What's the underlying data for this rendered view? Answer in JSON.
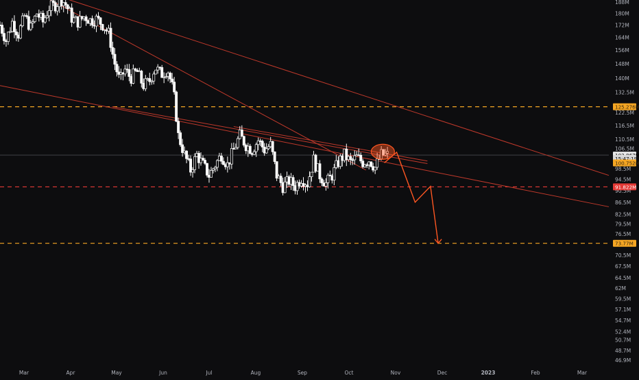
{
  "chart_data": {
    "type": "candlestick",
    "theme": {
      "background": "#0d0d0f",
      "candle_color": "#ffffff",
      "trendline_color": "#c0392b",
      "level_color": "#f5a623",
      "support_color": "#e53935",
      "projection_color": "#ff5722",
      "axis_text_color": "#b2b5be",
      "grid": false
    },
    "y_axis": {
      "scale": "log",
      "range": [
        46.0,
        190.0
      ],
      "ticks": [
        "188M",
        "180M",
        "172M",
        "164M",
        "156M",
        "148M",
        "140M",
        "132.5M",
        "122.5M",
        "116.5M",
        "110.5M",
        "106.5M",
        "98.5M",
        "94.5M",
        "90.5M",
        "86.5M",
        "82.5M",
        "79.5M",
        "76.5M",
        "73.5M",
        "70.5M",
        "67.5M",
        "64.5M",
        "62M",
        "59.5M",
        "57.1M",
        "54.7M",
        "52.4M",
        "50.7M",
        "48.7M",
        "46.9M"
      ],
      "tick_values": [
        188,
        180,
        172,
        164,
        156,
        148,
        140,
        132.5,
        122.5,
        116.5,
        110.5,
        106.5,
        98.5,
        94.5,
        90.5,
        86.5,
        82.5,
        79.5,
        76.5,
        73.5,
        70.5,
        67.5,
        64.5,
        62,
        59.5,
        57.1,
        54.7,
        52.4,
        50.7,
        48.7,
        46.9
      ]
    },
    "x_axis": {
      "labels": [
        "Mar",
        "Apr",
        "May",
        "Jun",
        "Jul",
        "Aug",
        "Sep",
        "Oct",
        "Nov",
        "Dec",
        "2023",
        "Feb",
        "Mar"
      ],
      "range": [
        "2022-02-20",
        "2023-03-23"
      ]
    },
    "price_labels": [
      {
        "text": "125.276M",
        "value": 125.276,
        "style": "level"
      },
      {
        "text": "103.867M",
        "value": 103.867,
        "style": "current"
      },
      {
        "text": "15:47:19",
        "value": 102.5,
        "style": "timer"
      },
      {
        "text": "100.752M",
        "value": 100.752,
        "style": "level"
      },
      {
        "text": "91.822M",
        "value": 91.822,
        "style": "support"
      },
      {
        "text": "73.77M",
        "value": 73.77,
        "style": "level"
      }
    ],
    "horizontal_levels": [
      {
        "value": 125.276,
        "style": "dashed",
        "color_key": "level_color"
      },
      {
        "value": 91.822,
        "style": "dashed",
        "color_key": "support_color"
      },
      {
        "value": 73.77,
        "style": "dashed",
        "color_key": "level_color"
      },
      {
        "value": 103.867,
        "style": "solid-thin",
        "color_key": "axis_text_color"
      }
    ],
    "price_series": [
      {
        "date": "2022-02-20",
        "value": 172
      },
      {
        "date": "2022-02-24",
        "value": 162
      },
      {
        "date": "2022-02-28",
        "value": 174
      },
      {
        "date": "2022-03-04",
        "value": 166
      },
      {
        "date": "2022-03-08",
        "value": 178
      },
      {
        "date": "2022-03-12",
        "value": 170
      },
      {
        "date": "2022-03-16",
        "value": 180
      },
      {
        "date": "2022-03-20",
        "value": 174
      },
      {
        "date": "2022-03-24",
        "value": 184
      },
      {
        "date": "2022-03-28",
        "value": 186
      },
      {
        "date": "2022-04-01",
        "value": 190
      },
      {
        "date": "2022-04-04",
        "value": 186
      },
      {
        "date": "2022-04-08",
        "value": 176
      },
      {
        "date": "2022-04-12",
        "value": 174
      },
      {
        "date": "2022-04-16",
        "value": 178
      },
      {
        "date": "2022-04-20",
        "value": 175
      },
      {
        "date": "2022-04-24",
        "value": 176
      },
      {
        "date": "2022-04-28",
        "value": 172
      },
      {
        "date": "2022-05-02",
        "value": 166
      },
      {
        "date": "2022-05-05",
        "value": 150
      },
      {
        "date": "2022-05-09",
        "value": 138
      },
      {
        "date": "2022-05-12",
        "value": 145
      },
      {
        "date": "2022-05-16",
        "value": 140
      },
      {
        "date": "2022-05-20",
        "value": 144
      },
      {
        "date": "2022-05-24",
        "value": 136
      },
      {
        "date": "2022-05-28",
        "value": 138
      },
      {
        "date": "2022-06-01",
        "value": 146
      },
      {
        "date": "2022-06-05",
        "value": 142
      },
      {
        "date": "2022-06-09",
        "value": 145
      },
      {
        "date": "2022-06-13",
        "value": 132
      },
      {
        "date": "2022-06-16",
        "value": 112
      },
      {
        "date": "2022-06-20",
        "value": 104
      },
      {
        "date": "2022-06-24",
        "value": 98
      },
      {
        "date": "2022-06-28",
        "value": 104
      },
      {
        "date": "2022-07-02",
        "value": 100
      },
      {
        "date": "2022-07-06",
        "value": 96
      },
      {
        "date": "2022-07-10",
        "value": 100
      },
      {
        "date": "2022-07-14",
        "value": 104
      },
      {
        "date": "2022-07-18",
        "value": 100
      },
      {
        "date": "2022-07-22",
        "value": 106
      },
      {
        "date": "2022-07-26",
        "value": 112
      },
      {
        "date": "2022-07-30",
        "value": 108
      },
      {
        "date": "2022-08-03",
        "value": 106
      },
      {
        "date": "2022-08-07",
        "value": 110
      },
      {
        "date": "2022-08-11",
        "value": 106
      },
      {
        "date": "2022-08-15",
        "value": 108
      },
      {
        "date": "2022-08-19",
        "value": 96
      },
      {
        "date": "2022-08-23",
        "value": 92
      },
      {
        "date": "2022-08-27",
        "value": 94
      },
      {
        "date": "2022-08-31",
        "value": 92
      },
      {
        "date": "2022-09-04",
        "value": 95
      },
      {
        "date": "2022-09-08",
        "value": 93
      },
      {
        "date": "2022-09-12",
        "value": 102
      },
      {
        "date": "2022-09-16",
        "value": 96
      },
      {
        "date": "2022-09-20",
        "value": 93
      },
      {
        "date": "2022-09-24",
        "value": 96
      },
      {
        "date": "2022-09-28",
        "value": 101
      },
      {
        "date": "2022-10-02",
        "value": 104
      },
      {
        "date": "2022-10-06",
        "value": 101
      },
      {
        "date": "2022-10-10",
        "value": 103
      },
      {
        "date": "2022-10-14",
        "value": 101
      },
      {
        "date": "2022-10-18",
        "value": 102
      },
      {
        "date": "2022-10-22",
        "value": 99
      },
      {
        "date": "2022-10-26",
        "value": 104
      },
      {
        "date": "2022-10-30",
        "value": 103.867
      }
    ],
    "trendlines": [
      {
        "from": {
          "date": "2022-04-05",
          "value": 190
        },
        "to": {
          "date": "2023-03-23",
          "value": 96
        }
      },
      {
        "from": {
          "date": "2022-03-24",
          "value": 190
        },
        "to": {
          "date": "2022-10-16",
          "value": 98
        }
      },
      {
        "from": {
          "date": "2022-02-20",
          "value": 136
        },
        "to": {
          "date": "2023-03-23",
          "value": 85
        }
      },
      {
        "from": {
          "date": "2022-05-04",
          "value": 125.3
        },
        "to": {
          "date": "2022-11-25",
          "value": 100.5
        }
      },
      {
        "from": {
          "date": "2022-07-22",
          "value": 116
        },
        "to": {
          "date": "2022-11-25",
          "value": 101.5
        }
      }
    ],
    "projection": [
      {
        "date": "2022-10-28",
        "value": 100.8
      },
      {
        "date": "2022-11-05",
        "value": 105
      },
      {
        "date": "2022-11-17",
        "value": 86.5
      },
      {
        "date": "2022-11-27",
        "value": 92
      },
      {
        "date": "2022-12-02",
        "value": 73.77
      }
    ],
    "highlight_ellipse": {
      "date": "2022-10-27",
      "value": 105.2
    }
  }
}
